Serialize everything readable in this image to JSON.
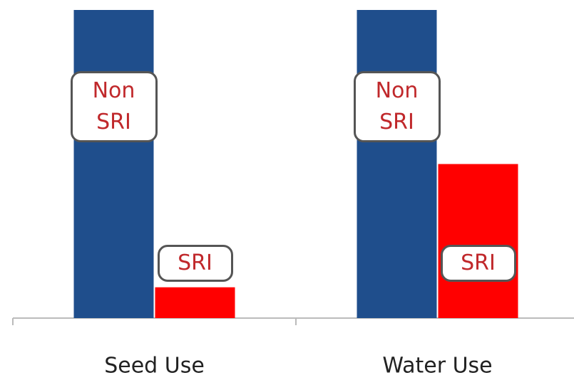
{
  "chart_data": {
    "type": "bar",
    "categories": [
      "Seed Use",
      "Water Use"
    ],
    "series": [
      {
        "name": "Non SRI",
        "color": "#1f4e8c",
        "values": [
          100,
          100
        ]
      },
      {
        "name": "SRI",
        "color": "#ff0000",
        "values": [
          10,
          50
        ]
      }
    ],
    "ylim": [
      0,
      100
    ]
  }
}
